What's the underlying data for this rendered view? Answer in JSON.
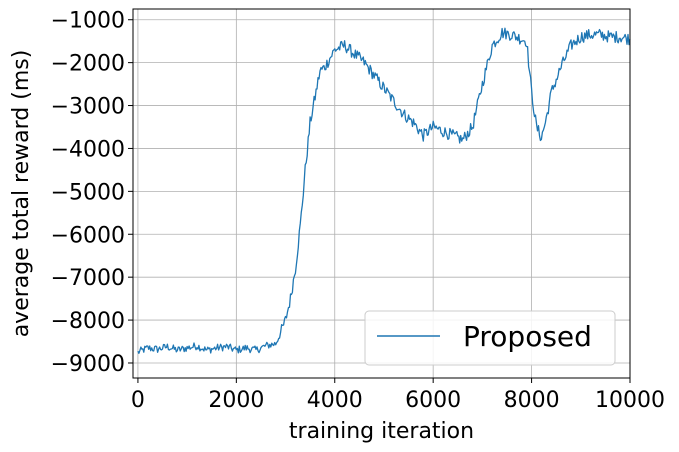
{
  "chart_data": {
    "type": "line",
    "title": "",
    "xlabel": "training iteration",
    "ylabel": "average total reward (ms)",
    "xlim": [
      -100,
      10000
    ],
    "ylim": [
      -9350,
      -750
    ],
    "xticks": [
      0,
      2000,
      4000,
      6000,
      8000,
      10000
    ],
    "xtick_labels": [
      "0",
      "2000",
      "4000",
      "6000",
      "8000",
      "10000"
    ],
    "yticks": [
      -1000,
      -2000,
      -3000,
      -4000,
      -5000,
      -6000,
      -7000,
      -8000,
      -9000
    ],
    "ytick_labels": [
      "−1000",
      "−2000",
      "−3000",
      "−4000",
      "−5000",
      "−6000",
      "−7000",
      "−8000",
      "−9000"
    ],
    "grid": true,
    "legend_position": "lower-right",
    "series": [
      {
        "name": "Proposed",
        "color": "#1f77b4",
        "x": [
          0,
          200,
          400,
          600,
          800,
          1000,
          1200,
          1400,
          1600,
          1800,
          2000,
          2200,
          2400,
          2600,
          2800,
          2900,
          3000,
          3100,
          3200,
          3300,
          3400,
          3500,
          3600,
          3700,
          3800,
          4000,
          4200,
          4400,
          4600,
          4800,
          5000,
          5200,
          5400,
          5600,
          5800,
          6000,
          6200,
          6400,
          6600,
          6800,
          7000,
          7200,
          7400,
          7600,
          7800,
          7900,
          8000,
          8100,
          8200,
          8300,
          8400,
          8500,
          8600,
          8800,
          9000,
          9200,
          9400,
          9600,
          9800,
          10000
        ],
        "y": [
          -8750,
          -8650,
          -8680,
          -8620,
          -8700,
          -8650,
          -8600,
          -8700,
          -8650,
          -8620,
          -8700,
          -8650,
          -8700,
          -8600,
          -8550,
          -8300,
          -8000,
          -7500,
          -6800,
          -5800,
          -4500,
          -3400,
          -2800,
          -2200,
          -2100,
          -1700,
          -1600,
          -1800,
          -2000,
          -2300,
          -2600,
          -2900,
          -3200,
          -3400,
          -3700,
          -3500,
          -3600,
          -3700,
          -3800,
          -3500,
          -2500,
          -1600,
          -1300,
          -1350,
          -1450,
          -1500,
          -2700,
          -3500,
          -3750,
          -3300,
          -2700,
          -2400,
          -2100,
          -1600,
          -1400,
          -1350,
          -1350,
          -1400,
          -1400,
          -1450
        ]
      }
    ]
  }
}
